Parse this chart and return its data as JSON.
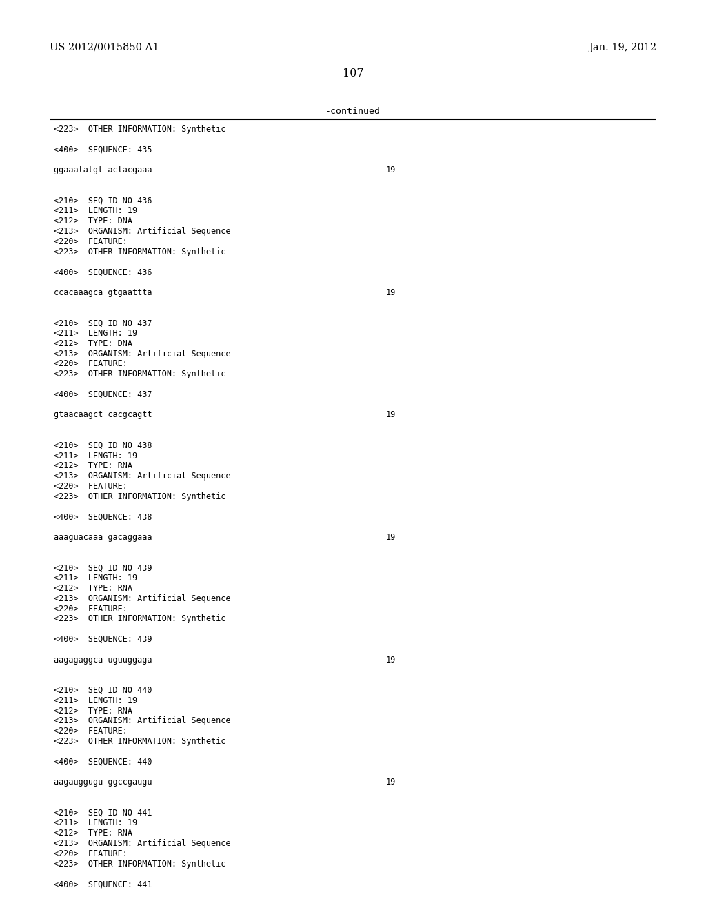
{
  "header_left": "US 2012/0015850 A1",
  "header_right": "Jan. 19, 2012",
  "page_number": "107",
  "continued_label": "-continued",
  "background_color": "#ffffff",
  "text_color": "#000000",
  "font_size_header": 10.5,
  "font_size_page": 11.5,
  "font_size_content": 8.5,
  "font_size_continued": 9.5,
  "content_lines": [
    {
      "text": "<223>  OTHER INFORMATION: Synthetic",
      "num": null
    },
    {
      "text": "",
      "num": null
    },
    {
      "text": "<400>  SEQUENCE: 435",
      "num": null
    },
    {
      "text": "",
      "num": null
    },
    {
      "text": "ggaaatatgt actacgaaa",
      "num": "19"
    },
    {
      "text": "",
      "num": null
    },
    {
      "text": "",
      "num": null
    },
    {
      "text": "<210>  SEQ ID NO 436",
      "num": null
    },
    {
      "text": "<211>  LENGTH: 19",
      "num": null
    },
    {
      "text": "<212>  TYPE: DNA",
      "num": null
    },
    {
      "text": "<213>  ORGANISM: Artificial Sequence",
      "num": null
    },
    {
      "text": "<220>  FEATURE:",
      "num": null
    },
    {
      "text": "<223>  OTHER INFORMATION: Synthetic",
      "num": null
    },
    {
      "text": "",
      "num": null
    },
    {
      "text": "<400>  SEQUENCE: 436",
      "num": null
    },
    {
      "text": "",
      "num": null
    },
    {
      "text": "ccacaaagca gtgaattta",
      "num": "19"
    },
    {
      "text": "",
      "num": null
    },
    {
      "text": "",
      "num": null
    },
    {
      "text": "<210>  SEQ ID NO 437",
      "num": null
    },
    {
      "text": "<211>  LENGTH: 19",
      "num": null
    },
    {
      "text": "<212>  TYPE: DNA",
      "num": null
    },
    {
      "text": "<213>  ORGANISM: Artificial Sequence",
      "num": null
    },
    {
      "text": "<220>  FEATURE:",
      "num": null
    },
    {
      "text": "<223>  OTHER INFORMATION: Synthetic",
      "num": null
    },
    {
      "text": "",
      "num": null
    },
    {
      "text": "<400>  SEQUENCE: 437",
      "num": null
    },
    {
      "text": "",
      "num": null
    },
    {
      "text": "gtaacaagct cacgcagtt",
      "num": "19"
    },
    {
      "text": "",
      "num": null
    },
    {
      "text": "",
      "num": null
    },
    {
      "text": "<210>  SEQ ID NO 438",
      "num": null
    },
    {
      "text": "<211>  LENGTH: 19",
      "num": null
    },
    {
      "text": "<212>  TYPE: RNA",
      "num": null
    },
    {
      "text": "<213>  ORGANISM: Artificial Sequence",
      "num": null
    },
    {
      "text": "<220>  FEATURE:",
      "num": null
    },
    {
      "text": "<223>  OTHER INFORMATION: Synthetic",
      "num": null
    },
    {
      "text": "",
      "num": null
    },
    {
      "text": "<400>  SEQUENCE: 438",
      "num": null
    },
    {
      "text": "",
      "num": null
    },
    {
      "text": "aaaguacaaa gacaggaaa",
      "num": "19"
    },
    {
      "text": "",
      "num": null
    },
    {
      "text": "",
      "num": null
    },
    {
      "text": "<210>  SEQ ID NO 439",
      "num": null
    },
    {
      "text": "<211>  LENGTH: 19",
      "num": null
    },
    {
      "text": "<212>  TYPE: RNA",
      "num": null
    },
    {
      "text": "<213>  ORGANISM: Artificial Sequence",
      "num": null
    },
    {
      "text": "<220>  FEATURE:",
      "num": null
    },
    {
      "text": "<223>  OTHER INFORMATION: Synthetic",
      "num": null
    },
    {
      "text": "",
      "num": null
    },
    {
      "text": "<400>  SEQUENCE: 439",
      "num": null
    },
    {
      "text": "",
      "num": null
    },
    {
      "text": "aagagaggca uguuggaga",
      "num": "19"
    },
    {
      "text": "",
      "num": null
    },
    {
      "text": "",
      "num": null
    },
    {
      "text": "<210>  SEQ ID NO 440",
      "num": null
    },
    {
      "text": "<211>  LENGTH: 19",
      "num": null
    },
    {
      "text": "<212>  TYPE: RNA",
      "num": null
    },
    {
      "text": "<213>  ORGANISM: Artificial Sequence",
      "num": null
    },
    {
      "text": "<220>  FEATURE:",
      "num": null
    },
    {
      "text": "<223>  OTHER INFORMATION: Synthetic",
      "num": null
    },
    {
      "text": "",
      "num": null
    },
    {
      "text": "<400>  SEQUENCE: 440",
      "num": null
    },
    {
      "text": "",
      "num": null
    },
    {
      "text": "aagauggugu ggccgaugu",
      "num": "19"
    },
    {
      "text": "",
      "num": null
    },
    {
      "text": "",
      "num": null
    },
    {
      "text": "<210>  SEQ ID NO 441",
      "num": null
    },
    {
      "text": "<211>  LENGTH: 19",
      "num": null
    },
    {
      "text": "<212>  TYPE: RNA",
      "num": null
    },
    {
      "text": "<213>  ORGANISM: Artificial Sequence",
      "num": null
    },
    {
      "text": "<220>  FEATURE:",
      "num": null
    },
    {
      "text": "<223>  OTHER INFORMATION: Synthetic",
      "num": null
    },
    {
      "text": "",
      "num": null
    },
    {
      "text": "<400>  SEQUENCE: 441",
      "num": null
    }
  ]
}
